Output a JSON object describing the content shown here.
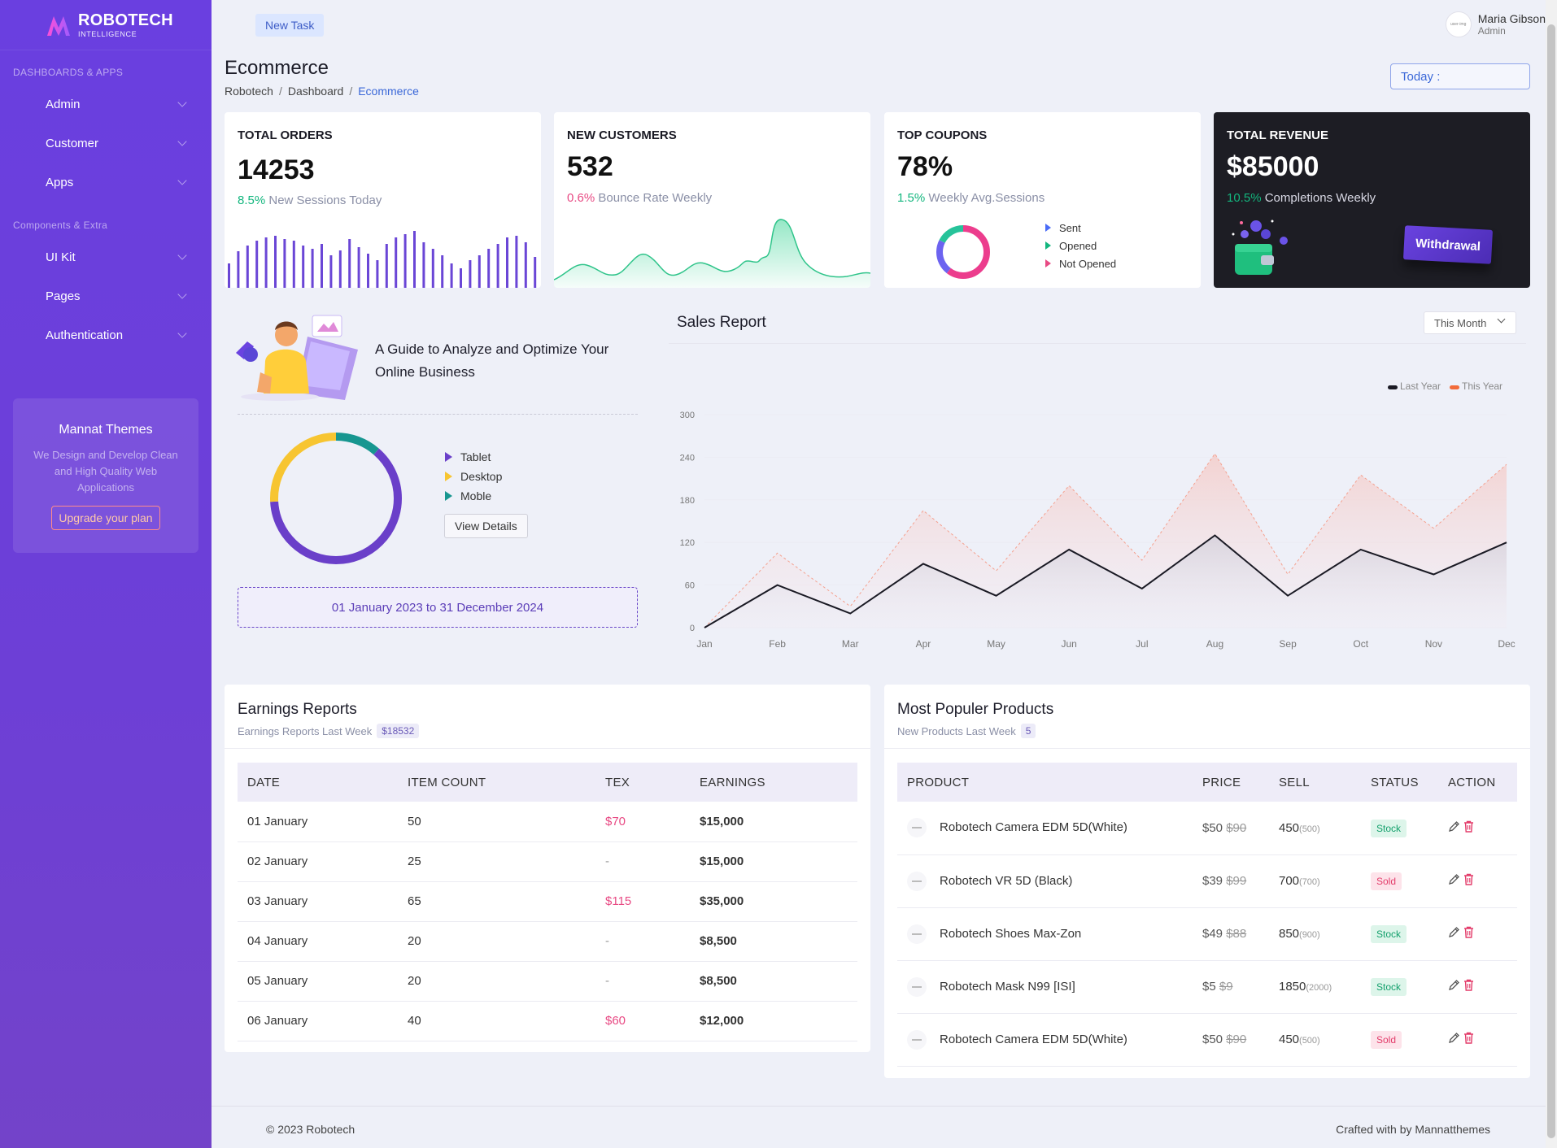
{
  "brand": {
    "name": "ROBOTECH",
    "sub": "INTELLIGENCE"
  },
  "sidebar": {
    "section1": "DASHBOARDS & APPS",
    "items1": [
      {
        "label": "Admin"
      },
      {
        "label": "Customer"
      },
      {
        "label": "Apps"
      }
    ],
    "section2": "Components & Extra",
    "items2": [
      {
        "label": "UI Kit"
      },
      {
        "label": "Pages"
      },
      {
        "label": "Authentication"
      }
    ],
    "promo": {
      "title": "Mannat Themes",
      "text": "We Design and Develop Clean and High Quality Web Applications",
      "button": "Upgrade your plan"
    }
  },
  "topbar": {
    "new_task": "New Task",
    "user_name": "Maria Gibson",
    "user_role": "Admin",
    "avatar_text": "user-img"
  },
  "page": {
    "title": "Ecommerce",
    "breadcrumb": [
      "Robotech",
      "Dashboard",
      "Ecommerce"
    ],
    "today": "Today :"
  },
  "stats": {
    "orders": {
      "title": "TOTAL ORDERS",
      "value": "14253",
      "pct": "8.5%",
      "label": "New Sessions Today"
    },
    "customers": {
      "title": "NEW CUSTOMERS",
      "value": "532",
      "pct": "0.6%",
      "label": "Bounce Rate Weekly"
    },
    "coupons": {
      "title": "TOP COUPONS",
      "value": "78%",
      "pct": "1.5%",
      "label": "Weekly Avg.Sessions",
      "legend": [
        "Sent",
        "Opened",
        "Not Opened"
      ]
    },
    "revenue": {
      "title": "TOTAL REVENUE",
      "value": "$85000",
      "pct": "10.5%",
      "label": "Completions Weekly",
      "button": "Withdrawal"
    }
  },
  "colors": {
    "accent": "#6a3fe0",
    "green": "#13b67e",
    "pink": "#e84a84",
    "blue": "#3b68d8",
    "yellow": "#f7c531",
    "teal": "#179690"
  },
  "guide": {
    "title": "A Guide to Analyze and Optimize Your Online Business",
    "legend": [
      "Tablet",
      "Desktop",
      "Moble"
    ],
    "view_details": "View Details",
    "date_range": "01 January 2023 to 31 December 2024"
  },
  "sales": {
    "title": "Sales Report",
    "filter": "This Month"
  },
  "chart_data": {
    "type": "line",
    "categories": [
      "Jan",
      "Feb",
      "Mar",
      "Apr",
      "May",
      "Jun",
      "Jul",
      "Aug",
      "Sep",
      "Oct",
      "Nov",
      "Dec"
    ],
    "series": [
      {
        "name": "Last Year",
        "values": [
          0,
          60,
          20,
          90,
          45,
          110,
          55,
          130,
          45,
          110,
          75,
          120
        ]
      },
      {
        "name": "This Year",
        "values": [
          0,
          105,
          30,
          165,
          80,
          200,
          95,
          245,
          75,
          215,
          140,
          230
        ]
      }
    ],
    "yticks": [
      0,
      60,
      120,
      180,
      240,
      300
    ],
    "ylim": [
      0,
      300
    ],
    "legend_position": "top-right",
    "grid": true
  },
  "earnings": {
    "title": "Earnings Reports",
    "subtitle": "Earnings Reports Last Week",
    "badge": "$18532",
    "headers": [
      "DATE",
      "ITEM COUNT",
      "TEX",
      "EARNINGS"
    ],
    "rows": [
      {
        "date": "01 January",
        "count": "50",
        "tex": "$70",
        "earnings": "$15,000"
      },
      {
        "date": "02 January",
        "count": "25",
        "tex": "-",
        "earnings": "$15,000"
      },
      {
        "date": "03 January",
        "count": "65",
        "tex": "$115",
        "earnings": "$35,000"
      },
      {
        "date": "04 January",
        "count": "20",
        "tex": "-",
        "earnings": "$8,500"
      },
      {
        "date": "05 January",
        "count": "20",
        "tex": "-",
        "earnings": "$8,500"
      },
      {
        "date": "06 January",
        "count": "40",
        "tex": "$60",
        "earnings": "$12,000"
      }
    ]
  },
  "products": {
    "title": "Most Populer Products",
    "subtitle": "New Products Last Week",
    "badge": "5",
    "headers": [
      "PRODUCT",
      "PRICE",
      "SELL",
      "STATUS",
      "ACTION"
    ],
    "rows": [
      {
        "name": "Robotech Camera EDM 5D(White)",
        "price": "$50",
        "old": "$90",
        "sell": "450",
        "total": "(500)",
        "status": "Stock"
      },
      {
        "name": "Robotech VR 5D (Black)",
        "price": "$39",
        "old": "$99",
        "sell": "700",
        "total": "(700)",
        "status": "Sold"
      },
      {
        "name": "Robotech Shoes Max-Zon",
        "price": "$49",
        "old": "$88",
        "sell": "850",
        "total": "(900)",
        "status": "Stock"
      },
      {
        "name": "Robotech Mask N99 [ISI]",
        "price": "$5",
        "old": "$9",
        "sell": "1850",
        "total": "(2000)",
        "status": "Stock"
      },
      {
        "name": "Robotech Camera EDM 5D(White)",
        "price": "$50",
        "old": "$90",
        "sell": "450",
        "total": "(500)",
        "status": "Sold"
      }
    ]
  },
  "footer": {
    "left": "© 2023 Robotech",
    "right": "Crafted with by Mannatthemes"
  }
}
